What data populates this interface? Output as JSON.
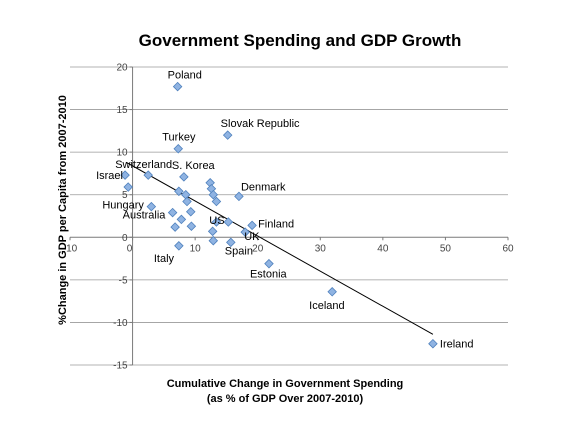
{
  "chart_data": {
    "type": "scatter",
    "title": "Government Spending and GDP Growth",
    "xlabel": [
      "Cumulative Change in Government Spending",
      "(as % of GDP Over 2007-2010)"
    ],
    "ylabel": "%Change in GDP per Capita from 2007-2010",
    "xlim": [
      -10,
      60
    ],
    "ylim": [
      -15,
      20
    ],
    "x_ticks": [
      -10,
      0,
      10,
      20,
      30,
      40,
      50,
      60
    ],
    "y_ticks": [
      20,
      15,
      10,
      5,
      0,
      -5,
      -10,
      -15
    ],
    "grid": "horizontal major gridlines",
    "legend": "none",
    "marker_color": "#8fb3e2",
    "marker_edge_color": "#4f81bd",
    "trendline": {
      "x1": -1,
      "y1": 8.8,
      "x2": 48,
      "y2": -11.4
    },
    "points": [
      {
        "x": 7.2,
        "y": 17.7,
        "label": "Poland"
      },
      {
        "x": 15.2,
        "y": 12.0,
        "label": "Slovak Republic"
      },
      {
        "x": 7.3,
        "y": 10.4,
        "label": "Turkey"
      },
      {
        "x": -1.2,
        "y": 7.3,
        "label": "Israel"
      },
      {
        "x": 2.5,
        "y": 7.3,
        "label": "Switzerland"
      },
      {
        "x": 8.2,
        "y": 7.1,
        "label": "S. Korea"
      },
      {
        "x": -0.7,
        "y": 5.9,
        "label": ""
      },
      {
        "x": 12.4,
        "y": 6.4,
        "label": ""
      },
      {
        "x": 12.6,
        "y": 5.7,
        "label": ""
      },
      {
        "x": 7.4,
        "y": 5.4,
        "label": ""
      },
      {
        "x": 12.9,
        "y": 5.0,
        "label": ""
      },
      {
        "x": 8.5,
        "y": 5.0,
        "label": ""
      },
      {
        "x": 17.0,
        "y": 4.8,
        "label": "Denmark"
      },
      {
        "x": 13.4,
        "y": 4.2,
        "label": ""
      },
      {
        "x": 8.7,
        "y": 4.2,
        "label": ""
      },
      {
        "x": 3.0,
        "y": 3.6,
        "label": "Hungary"
      },
      {
        "x": 9.3,
        "y": 3.0,
        "label": ""
      },
      {
        "x": 6.4,
        "y": 2.9,
        "label": "Australia"
      },
      {
        "x": 7.8,
        "y": 2.1,
        "label": ""
      },
      {
        "x": 13.4,
        "y": 1.8,
        "label": ""
      },
      {
        "x": 15.3,
        "y": 1.8,
        "label": "US"
      },
      {
        "x": 19.1,
        "y": 1.4,
        "label": "Finland"
      },
      {
        "x": 6.8,
        "y": 1.2,
        "label": ""
      },
      {
        "x": 9.4,
        "y": 1.3,
        "label": ""
      },
      {
        "x": 12.8,
        "y": 0.7,
        "label": ""
      },
      {
        "x": 18.0,
        "y": 0.6,
        "label": "UK"
      },
      {
        "x": 12.9,
        "y": -0.4,
        "label": ""
      },
      {
        "x": 15.7,
        "y": -0.6,
        "label": "Spain"
      },
      {
        "x": 7.4,
        "y": -1.0,
        "label": "Italy"
      },
      {
        "x": 21.8,
        "y": -3.1,
        "label": "Estonia"
      },
      {
        "x": 31.9,
        "y": -6.4,
        "label": "Iceland"
      },
      {
        "x": 48.0,
        "y": -12.5,
        "label": "Ireland"
      }
    ]
  }
}
